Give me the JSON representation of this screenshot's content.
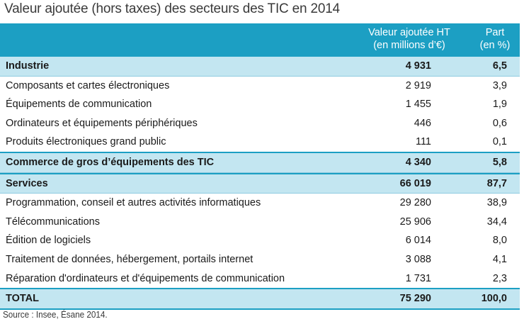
{
  "title": "Valeur ajoutée (hors taxes) des secteurs des TIC en 2014",
  "header": {
    "value_col_line1": "Valeur ajoutée HT",
    "value_col_line2": "(en millions d’€)",
    "pct_col_line1": "Part",
    "pct_col_line2": "(en %)"
  },
  "rows": [
    {
      "label": "Industrie",
      "value": "4 931",
      "pct": "6,5"
    },
    {
      "label": "Composants et cartes électroniques",
      "value": "2 919",
      "pct": "3,9"
    },
    {
      "label": "Équipements de communication",
      "value": "1 455",
      "pct": "1,9"
    },
    {
      "label": "Ordinateurs et équipements périphériques",
      "value": "446",
      "pct": "0,6"
    },
    {
      "label": "Produits électroniques grand public",
      "value": "111",
      "pct": "0,1"
    },
    {
      "label": "Commerce de gros d’équipements des TIC",
      "value": "4 340",
      "pct": "5,8"
    },
    {
      "label": "Services",
      "value": "66 019",
      "pct": "87,7"
    },
    {
      "label": "Programmation, conseil et autres activités informatiques",
      "value": "29 280",
      "pct": "38,9"
    },
    {
      "label": "Télécommunications",
      "value": "25 906",
      "pct": "34,4"
    },
    {
      "label": "Édition de logiciels",
      "value": "6 014",
      "pct": "8,0"
    },
    {
      "label": "Traitement de données, hébergement, portails internet",
      "value": "3 088",
      "pct": "4,1"
    },
    {
      "label": "Réparation d'ordinateurs et d'équipements de communication",
      "value": "1 731",
      "pct": "2,3"
    },
    {
      "label": "TOTAL",
      "value": "75 290",
      "pct": "100,0"
    }
  ],
  "source": "Source : Insee, Ésane 2014.",
  "colors": {
    "header_bg": "#1c9fc3",
    "band_bg": "#c3e6f1"
  }
}
